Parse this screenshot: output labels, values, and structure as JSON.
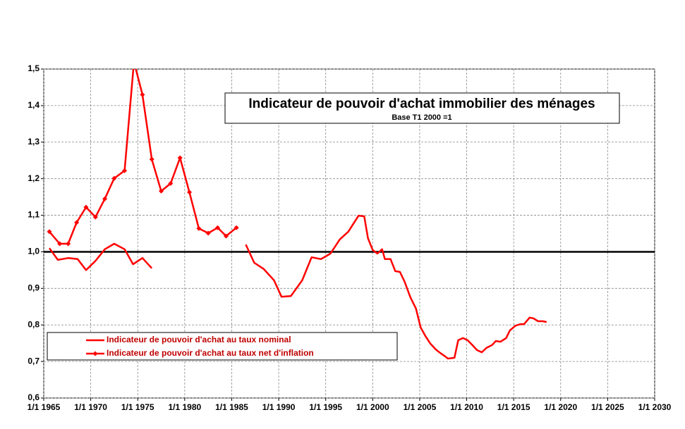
{
  "chart_data": {
    "type": "line",
    "title": "Indicateur de pouvoir d'achat immobilier des ménages",
    "subtitle": "Base T1 2000 =1",
    "xlim": [
      1965,
      2030
    ],
    "xticks": [
      {
        "value": 1965,
        "label": "1/1 1965"
      },
      {
        "value": 1970,
        "label": "1/1 1970"
      },
      {
        "value": 1975,
        "label": "1/1 1975"
      },
      {
        "value": 1980,
        "label": "1/1 1980"
      },
      {
        "value": 1985,
        "label": "1/1 1985"
      },
      {
        "value": 1990,
        "label": "1/1 1990"
      },
      {
        "value": 1995,
        "label": "1/1 1995"
      },
      {
        "value": 2000,
        "label": "1/1 2000"
      },
      {
        "value": 2005,
        "label": "1/1 2005"
      },
      {
        "value": 2010,
        "label": "1/1 2010"
      },
      {
        "value": 2015,
        "label": "1/1 2015"
      },
      {
        "value": 2020,
        "label": "1/1 2020"
      },
      {
        "value": 2025,
        "label": "1/1 2025"
      },
      {
        "value": 2030,
        "label": "1/1 2030"
      }
    ],
    "ylim": [
      0.6,
      1.5
    ],
    "yticks": [
      {
        "value": 0.6,
        "label": "0,6"
      },
      {
        "value": 0.7,
        "label": "0,7"
      },
      {
        "value": 0.8,
        "label": "0,8"
      },
      {
        "value": 0.9,
        "label": "0,9"
      },
      {
        "value": 1.0,
        "label": "1,0"
      },
      {
        "value": 1.1,
        "label": "1,1"
      },
      {
        "value": 1.2,
        "label": "1,2"
      },
      {
        "value": 1.3,
        "label": "1,3"
      },
      {
        "value": 1.4,
        "label": "1,4"
      },
      {
        "value": 1.5,
        "label": "1,5"
      }
    ],
    "grid": true,
    "reference_line": 1.0,
    "series": [
      {
        "name": "Indicateur de pouvoir d'achat au taux nominal",
        "color": "#ff0000",
        "markers": false,
        "x": [
          1965.6,
          1966.5,
          1967.6,
          1968.6,
          1969.5,
          1970.5,
          1971.5,
          1972.5,
          1973.6,
          1974.5,
          1975.5,
          1976.5,
          1981,
          1986.5,
          1987.4,
          1988.4,
          1989.5,
          1990.3,
          1991.3,
          1992.5,
          1993.5,
          1994.5,
          1995.5,
          1996.5,
          1997.4,
          1998.5,
          1999.1,
          1999.5,
          2000,
          2000.5,
          2001,
          2001.3,
          2001.9,
          2002.4,
          2002.9,
          2003.4,
          2004,
          2004.6,
          2005.1,
          2005.6,
          2006.1,
          2006.7,
          2007.2,
          2007.7,
          2008,
          2008.7,
          2009.1,
          2009.6,
          2010.1,
          2010.6,
          2011.1,
          2011.6,
          2012.1,
          2012.7,
          2013.1,
          2013.6,
          2014.2,
          2014.6,
          2015.2,
          2015.7,
          2016.1,
          2016.7,
          2017.1,
          2017.6,
          2018.1,
          2018.5
        ],
        "values": [
          1.01,
          0.978,
          0.983,
          0.98,
          0.95,
          0.975,
          1.007,
          1.022,
          1.007,
          0.966,
          0.983,
          0.955,
          null,
          1.02,
          0.97,
          0.953,
          0.922,
          0.877,
          0.879,
          0.922,
          0.985,
          0.98,
          0.995,
          1.034,
          1.055,
          1.099,
          1.097,
          1.037,
          1.005,
          0.995,
          1.007,
          0.98,
          0.98,
          0.947,
          0.945,
          0.918,
          0.876,
          0.845,
          0.793,
          0.77,
          0.75,
          0.733,
          0.723,
          0.714,
          0.708,
          0.71,
          0.758,
          0.764,
          0.758,
          0.745,
          0.731,
          0.725,
          0.737,
          0.745,
          0.756,
          0.754,
          0.764,
          0.785,
          0.798,
          0.802,
          0.802,
          0.82,
          0.818,
          0.81,
          0.81,
          0.808
        ]
      },
      {
        "name": "Indicateur de pouvoir d'achat au taux net d'inflation",
        "color": "#ff0000",
        "markers": true,
        "x": [
          1965.6,
          1966.7,
          1967.6,
          1968.5,
          1969.5,
          1970.5,
          1971.5,
          1972.5,
          1973.6,
          1974.6,
          1975.5,
          1976.5,
          1977.5,
          1978.5,
          1979.5,
          1980.5,
          1981.5,
          1982.5,
          1983.5,
          1984.4,
          1985.5
        ],
        "values": [
          1.055,
          1.022,
          1.022,
          1.08,
          1.122,
          1.095,
          1.145,
          1.201,
          1.222,
          1.52,
          1.43,
          1.253,
          1.166,
          1.187,
          1.257,
          1.163,
          1.064,
          1.051,
          1.066,
          1.043,
          1.066
        ]
      }
    ]
  }
}
